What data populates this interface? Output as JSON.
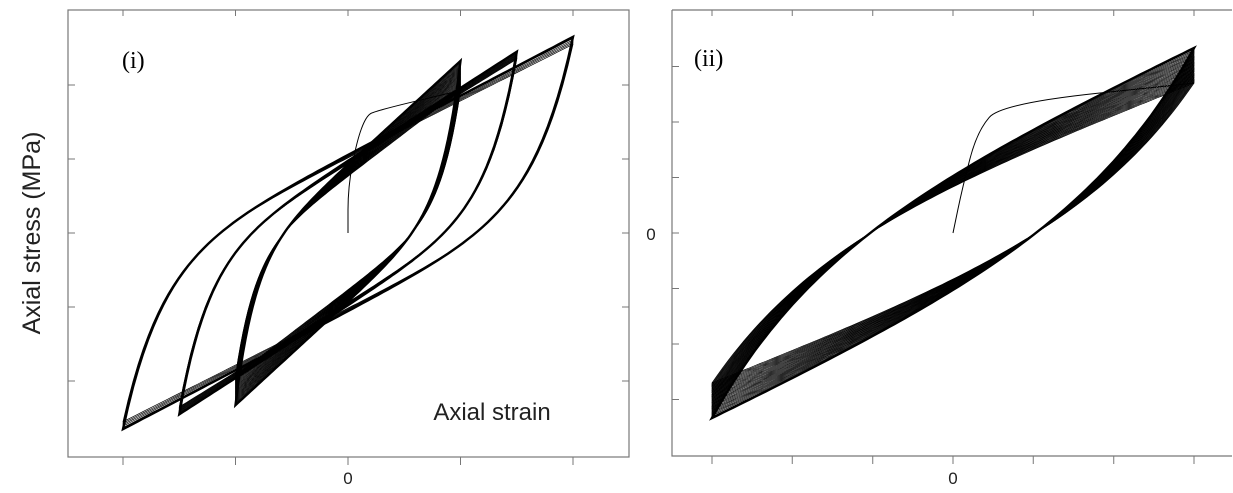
{
  "chart_data": [
    {
      "type": "line",
      "panel_label": "(i)",
      "ylabel": "Axial stress (MPa)",
      "xlabel": "Axial strain",
      "x_tick_labels": [
        "0"
      ],
      "y_tick_labels": [],
      "xlim": [
        -1.0,
        1.0
      ],
      "ylim": [
        -1.0,
        1.0
      ],
      "grid": false,
      "series": [
        {
          "loops": [
            {
              "strain_amplitude": 0.5,
              "stress_peak_first": 0.77,
              "stress_peak_last": 0.93,
              "cycles": 30
            },
            {
              "strain_amplitude": 0.75,
              "stress_peak_first": 0.94,
              "stress_peak_last": 0.98,
              "cycles": 12
            },
            {
              "strain_amplitude": 1.0,
              "stress_peak_first": 1.02,
              "stress_peak_last": 1.06,
              "cycles": 6
            }
          ],
          "initial_curve": [
            [
              0.0,
              0.0
            ],
            [
              0.0,
              0.25
            ],
            [
              0.04,
              0.5
            ],
            [
              0.08,
              0.63
            ],
            [
              0.12,
              0.66
            ],
            [
              0.5,
              0.77
            ]
          ]
        }
      ]
    },
    {
      "type": "line",
      "panel_label": "(ii)",
      "ylabel": "",
      "xlabel": "",
      "x_tick_labels": [
        "0"
      ],
      "y_tick_labels": [
        "0"
      ],
      "xlim": [
        -1.0,
        1.0
      ],
      "ylim": [
        -1.0,
        1.0
      ],
      "grid": false,
      "series": [
        {
          "loops": [
            {
              "strain_amplitude": 1.0,
              "stress_peak_first": 0.81,
              "stress_peak_last": 1.0,
              "cycles": 30
            }
          ],
          "initial_curve": [
            [
              0.0,
              0.0
            ],
            [
              0.04,
              0.25
            ],
            [
              0.1,
              0.55
            ],
            [
              0.2,
              0.7
            ],
            [
              1.0,
              0.81
            ]
          ]
        }
      ]
    }
  ]
}
